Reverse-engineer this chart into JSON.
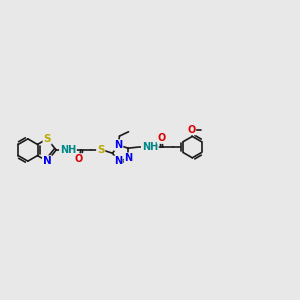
{
  "bg_color": "#e8e8e8",
  "bond_color": "#1a1a1a",
  "bond_width": 1.2,
  "atom_colors": {
    "C": "#1a1a1a",
    "N": "#0000ee",
    "O": "#dd0000",
    "S": "#bbaa00",
    "H": "#008888",
    "Me": "#1a1a1a"
  },
  "font_size": 7.5,
  "fig_size": [
    3.0,
    3.0
  ],
  "dpi": 100,
  "xlim": [
    0,
    14
  ],
  "ylim": [
    3,
    9
  ]
}
